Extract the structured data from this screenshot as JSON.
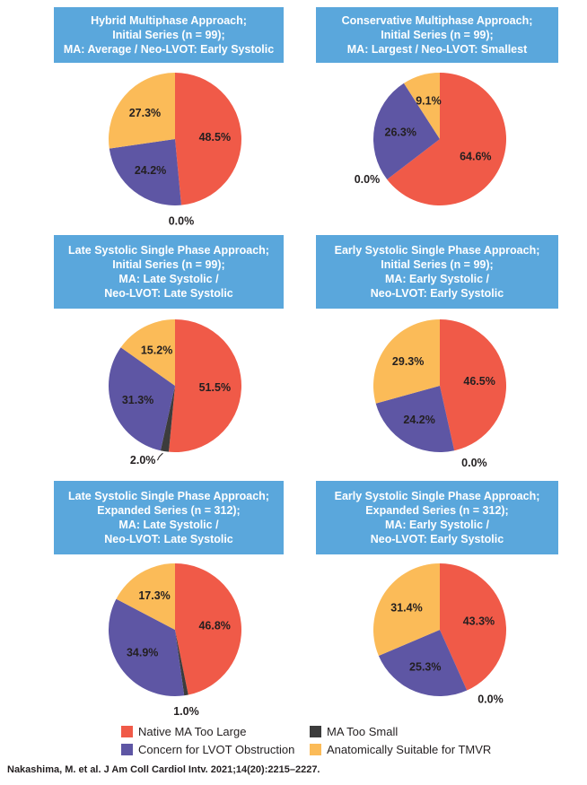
{
  "colors": {
    "native_ma_too_large": "#f05a48",
    "ma_too_small": "#3c3c3c",
    "lvot_obstruction": "#5e56a4",
    "anatomically_suitable": "#fbbb58",
    "header_bg": "#5aa7dc"
  },
  "legend": {
    "native_ma_too_large": "Native MA Too Large",
    "ma_too_small": "MA Too Small",
    "lvot_obstruction": "Concern for LVOT Obstruction",
    "anatomically_suitable": "Anatomically Suitable for TMVR"
  },
  "citation": "Nakashima, M. et al. J Am Coll Cardiol Intv. 2021;14(20):2215–2227.",
  "chart_data": [
    {
      "type": "pie",
      "title_lines": [
        "Hybrid Multiphase Approach;",
        "Initial Series (n = 99);",
        "MA: Average / Neo-LVOT: Early Systolic"
      ],
      "slices": [
        {
          "category": "native_ma_too_large",
          "value": 48.5,
          "label": "48.5%"
        },
        {
          "category": "ma_too_small",
          "value": 0.0,
          "label": "0.0%"
        },
        {
          "category": "lvot_obstruction",
          "value": 24.2,
          "label": "24.2%"
        },
        {
          "category": "anatomically_suitable",
          "value": 27.3,
          "label": "27.3%"
        }
      ]
    },
    {
      "type": "pie",
      "title_lines": [
        "Conservative Multiphase Approach;",
        "Initial Series (n = 99);",
        "MA: Largest / Neo-LVOT: Smallest"
      ],
      "slices": [
        {
          "category": "native_ma_too_large",
          "value": 64.6,
          "label": "64.6%"
        },
        {
          "category": "ma_too_small",
          "value": 0.0,
          "label": "0.0%"
        },
        {
          "category": "lvot_obstruction",
          "value": 26.3,
          "label": "26.3%"
        },
        {
          "category": "anatomically_suitable",
          "value": 9.1,
          "label": "9.1%"
        }
      ]
    },
    {
      "type": "pie",
      "title_lines": [
        "Late Systolic Single Phase Approach;",
        "Initial Series (n = 99);",
        "MA: Late Systolic /",
        "Neo-LVOT: Late Systolic"
      ],
      "slices": [
        {
          "category": "native_ma_too_large",
          "value": 51.5,
          "label": "51.5%"
        },
        {
          "category": "ma_too_small",
          "value": 2.0,
          "label": "2.0%"
        },
        {
          "category": "lvot_obstruction",
          "value": 31.3,
          "label": "31.3%"
        },
        {
          "category": "anatomically_suitable",
          "value": 15.2,
          "label": "15.2%"
        }
      ]
    },
    {
      "type": "pie",
      "title_lines": [
        "Early Systolic Single Phase Approach;",
        "Initial Series (n = 99);",
        "MA: Early Systolic /",
        "Neo-LVOT: Early Systolic"
      ],
      "slices": [
        {
          "category": "native_ma_too_large",
          "value": 46.5,
          "label": "46.5%"
        },
        {
          "category": "ma_too_small",
          "value": 0.0,
          "label": "0.0%"
        },
        {
          "category": "lvot_obstruction",
          "value": 24.2,
          "label": "24.2%"
        },
        {
          "category": "anatomically_suitable",
          "value": 29.3,
          "label": "29.3%"
        }
      ]
    },
    {
      "type": "pie",
      "title_lines": [
        "Late Systolic Single Phase Approach;",
        "Expanded Series (n = 312);",
        "MA: Late Systolic /",
        "Neo-LVOT: Late Systolic"
      ],
      "slices": [
        {
          "category": "native_ma_too_large",
          "value": 46.8,
          "label": "46.8%"
        },
        {
          "category": "ma_too_small",
          "value": 1.0,
          "label": "1.0%"
        },
        {
          "category": "lvot_obstruction",
          "value": 34.9,
          "label": "34.9%"
        },
        {
          "category": "anatomically_suitable",
          "value": 17.3,
          "label": "17.3%"
        }
      ]
    },
    {
      "type": "pie",
      "title_lines": [
        "Early Systolic Single Phase Approach;",
        "Expanded Series (n = 312);",
        "MA: Early Systolic /",
        "Neo-LVOT: Early Systolic"
      ],
      "slices": [
        {
          "category": "native_ma_too_large",
          "value": 43.3,
          "label": "43.3%"
        },
        {
          "category": "ma_too_small",
          "value": 0.0,
          "label": "0.0%"
        },
        {
          "category": "lvot_obstruction",
          "value": 25.3,
          "label": "25.3%"
        },
        {
          "category": "anatomically_suitable",
          "value": 31.4,
          "label": "31.4%"
        }
      ]
    }
  ]
}
